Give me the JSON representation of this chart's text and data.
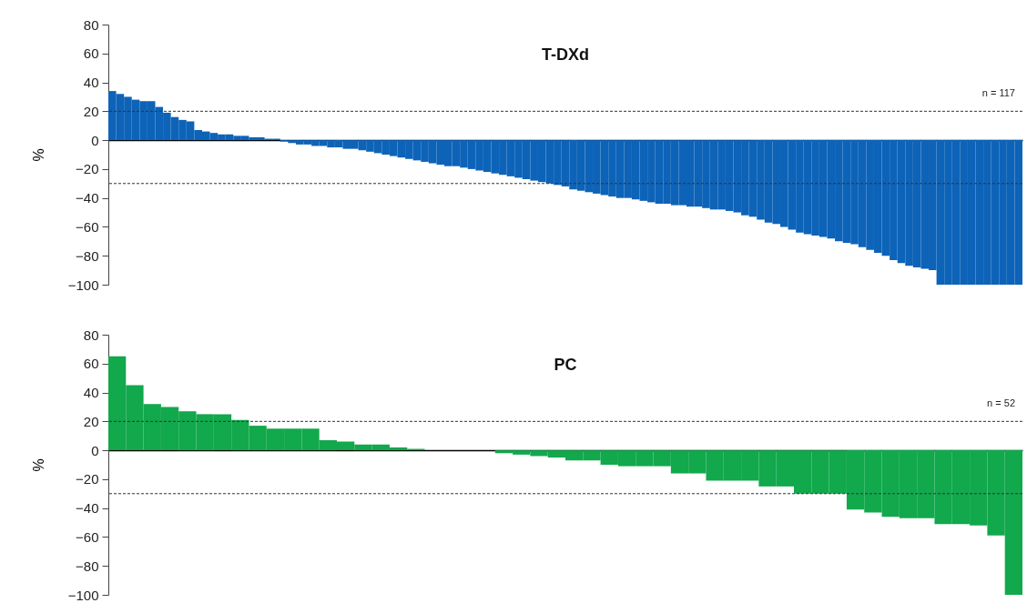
{
  "chart_data": [
    {
      "type": "bar",
      "title": "T-DXd",
      "ylabel": "%",
      "categories": [
        null,
        null,
        null,
        null,
        null,
        null,
        null,
        null,
        null,
        null,
        null,
        null,
        null,
        null,
        null,
        null,
        null,
        null,
        null,
        null,
        null,
        null,
        null,
        null,
        null,
        null,
        null,
        null,
        null,
        null,
        null,
        null,
        null,
        null,
        null,
        null,
        null,
        null,
        null,
        null,
        null,
        null,
        null,
        null,
        null,
        null,
        null,
        null,
        null,
        null,
        null,
        null,
        null,
        null,
        null,
        null,
        null,
        null,
        null,
        null,
        null,
        null,
        null,
        null,
        null,
        null,
        null,
        null,
        null,
        null,
        null,
        null,
        null,
        null,
        null,
        null,
        null,
        null,
        null,
        null,
        null,
        null,
        null,
        null,
        null,
        null,
        null,
        null,
        null,
        null,
        null,
        null,
        null,
        null,
        null,
        null,
        null,
        null,
        null,
        null,
        null,
        null,
        null,
        null,
        null,
        null,
        null,
        null,
        null,
        null,
        null,
        null,
        null,
        null,
        null,
        null,
        null
      ],
      "values": [
        34,
        32,
        30,
        28,
        27,
        27,
        23,
        19,
        16,
        14,
        13,
        7,
        6,
        5,
        4,
        4,
        3,
        3,
        2,
        2,
        1,
        1,
        -1,
        -2,
        -3,
        -3,
        -4,
        -4,
        -5,
        -5,
        -6,
        -6,
        -7,
        -8,
        -9,
        -10,
        -11,
        -12,
        -13,
        -14,
        -15,
        -16,
        -17,
        -18,
        -18,
        -19,
        -20,
        -21,
        -22,
        -23,
        -24,
        -25,
        -26,
        -27,
        -28,
        -29,
        -30,
        -31,
        -32,
        -34,
        -35,
        -36,
        -37,
        -38,
        -39,
        -40,
        -40,
        -41,
        -42,
        -43,
        -44,
        -44,
        -45,
        -45,
        -46,
        -46,
        -47,
        -48,
        -48,
        -49,
        -50,
        -52,
        -53,
        -55,
        -57,
        -58,
        -60,
        -62,
        -64,
        -65,
        -66,
        -67,
        -68,
        -70,
        -71,
        -72,
        -74,
        -76,
        -78,
        -80,
        -83,
        -85,
        -87,
        -88,
        -89,
        -90,
        -100,
        -100,
        -100,
        -100,
        -100,
        -100,
        -100,
        -100,
        -100,
        -100,
        -100
      ],
      "color": "#0d63b8",
      "ylim": [
        -100,
        80
      ],
      "yticks": [
        -100,
        -80,
        -60,
        -40,
        -20,
        0,
        20,
        40,
        60,
        80
      ],
      "grid": false,
      "tick_labels": "y",
      "ref_lines": [
        {
          "axis": "y",
          "value": 20,
          "line_style": "dashed"
        },
        {
          "axis": "y",
          "value": -30,
          "line_style": "dashed"
        }
      ],
      "annotations": [
        "n = 117"
      ]
    },
    {
      "type": "bar",
      "title": "PC",
      "ylabel": "%",
      "categories": [
        null,
        null,
        null,
        null,
        null,
        null,
        null,
        null,
        null,
        null,
        null,
        null,
        null,
        null,
        null,
        null,
        null,
        null,
        null,
        null,
        null,
        null,
        null,
        null,
        null,
        null,
        null,
        null,
        null,
        null,
        null,
        null,
        null,
        null,
        null,
        null,
        null,
        null,
        null,
        null,
        null,
        null,
        null,
        null,
        null,
        null,
        null,
        null,
        null,
        null,
        null,
        null
      ],
      "values": [
        65,
        45,
        32,
        30,
        27,
        25,
        25,
        21,
        17,
        15,
        15,
        15,
        7,
        6,
        4,
        4,
        2,
        1,
        0,
        0,
        0,
        0,
        -2,
        -3,
        -4,
        -5,
        -7,
        -7,
        -10,
        -11,
        -11,
        -11,
        -16,
        -16,
        -21,
        -21,
        -21,
        -25,
        -25,
        -30,
        -30,
        -30,
        -41,
        -43,
        -46,
        -47,
        -47,
        -51,
        -51,
        -52,
        -59,
        -100
      ],
      "color": "#12a84c",
      "ylim": [
        -100,
        80
      ],
      "yticks": [
        -100,
        -80,
        -60,
        -40,
        -20,
        0,
        20,
        40,
        60,
        80
      ],
      "grid": false,
      "tick_labels": "y",
      "ref_lines": [
        {
          "axis": "y",
          "value": 20,
          "line_style": "dashed"
        },
        {
          "axis": "y",
          "value": -30,
          "line_style": "dashed"
        }
      ],
      "annotations": [
        "n = 52"
      ]
    }
  ]
}
